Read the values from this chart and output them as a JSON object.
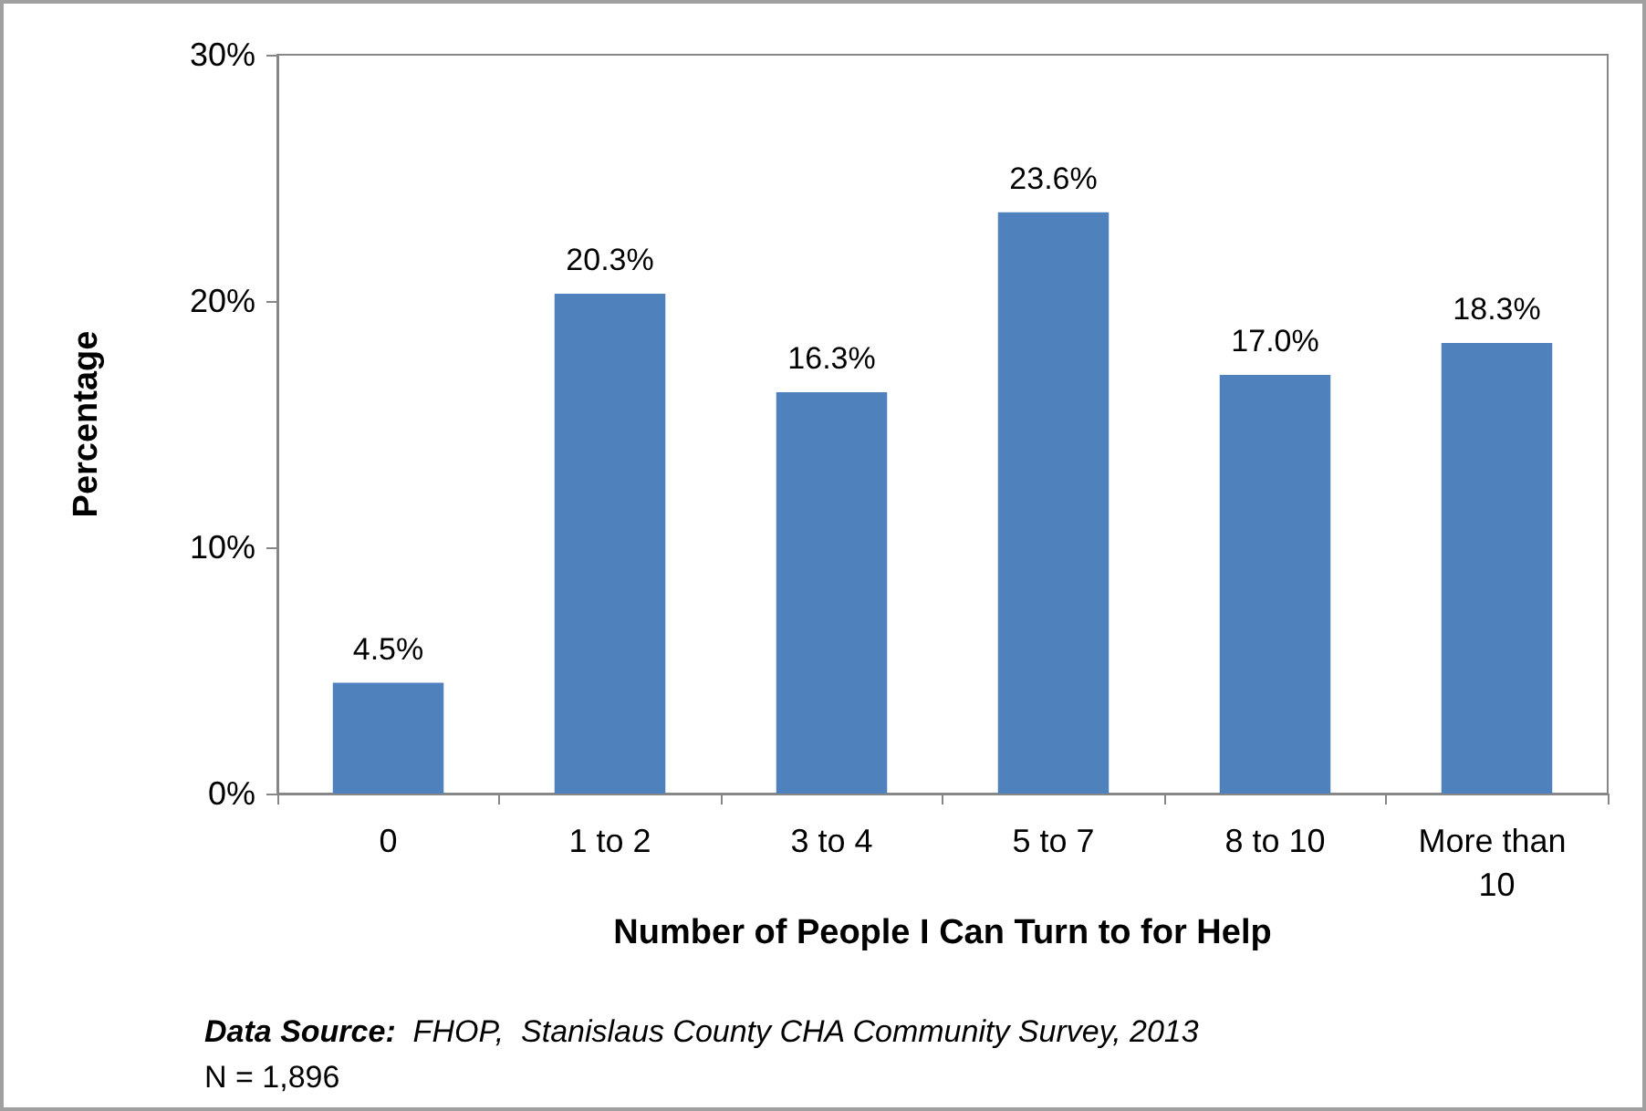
{
  "chart_data": {
    "type": "bar",
    "xlabel": "Number of People I Can Turn to for Help",
    "ylabel": "Percentage",
    "categories": [
      "0",
      "1 to 2",
      "3 to 4",
      "5 to 7",
      "8 to 10",
      "More than 10"
    ],
    "values": [
      4.5,
      20.3,
      16.3,
      23.6,
      17.0,
      18.3
    ],
    "value_labels": [
      "4.5%",
      "20.3%",
      "16.3%",
      "23.6%",
      "17.0%",
      "18.3%"
    ],
    "color": "#4f81bd",
    "ylim": [
      0,
      30
    ],
    "yticks": [
      {
        "value": 0,
        "label": "0%"
      },
      {
        "value": 10,
        "label": "10%"
      },
      {
        "value": 20,
        "label": "20%"
      },
      {
        "value": 30,
        "label": "30%"
      }
    ],
    "annotations": [
      "Data Source:  FHOP,  Stanislaus County CHA Community Survey, 2013",
      "N = 1,896"
    ]
  }
}
